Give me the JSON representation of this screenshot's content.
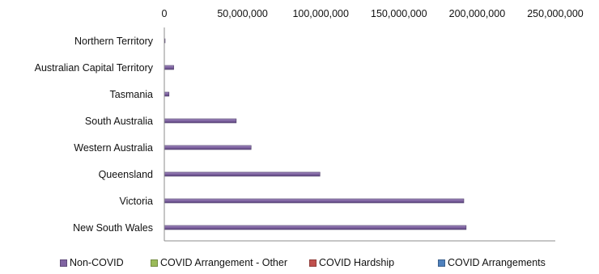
{
  "chart_data": {
    "type": "bar",
    "orientation": "horizontal",
    "stacked": true,
    "categories": [
      "New South Wales",
      "Victoria",
      "Queensland",
      "Western Australia",
      "South Australia",
      "Tasmania",
      "Australian Capital Territory",
      "Northern Territory"
    ],
    "series": [
      {
        "name": "Non-COVID",
        "color": "#8064A2",
        "values": [
          193000000,
          191500000,
          99500000,
          55500000,
          46000000,
          3000000,
          6000000,
          500000
        ]
      },
      {
        "name": "COVID Arrangement - Other",
        "color": "#9BBB59",
        "values": [
          0,
          0,
          0,
          0,
          0,
          0,
          0,
          0
        ]
      },
      {
        "name": "COVID Hardship",
        "color": "#C0504D",
        "values": [
          0,
          0,
          0,
          0,
          0,
          0,
          0,
          0
        ]
      },
      {
        "name": "COVID Arrangements",
        "color": "#4F81BD",
        "values": [
          0,
          0,
          0,
          0,
          0,
          0,
          0,
          0
        ]
      }
    ],
    "x_ticks": [
      "0",
      "50,000,000",
      "100,000,000",
      "150,000,000",
      "200,000,000",
      "250,000,000"
    ],
    "xlim": [
      0,
      250000000
    ],
    "axis_position": "top",
    "grid": false,
    "legend_position": "bottom",
    "title": "",
    "xlabel": "",
    "ylabel": ""
  }
}
